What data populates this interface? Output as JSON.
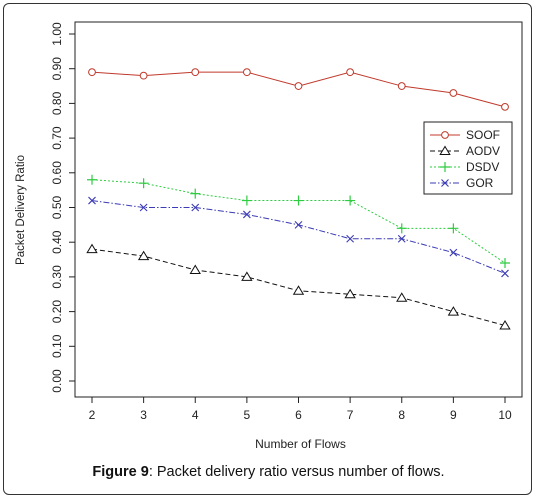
{
  "caption": {
    "label": "Figure 9",
    "text": ": Packet delivery ratio versus number of flows."
  },
  "chart_data": {
    "type": "line",
    "title": "",
    "xlabel": "Number of Flows",
    "ylabel": "Packet Delivery Ratio",
    "x": [
      2,
      3,
      4,
      5,
      6,
      7,
      8,
      9,
      10
    ],
    "x_ticks": [
      "2",
      "3",
      "4",
      "5",
      "6",
      "7",
      "8",
      "9",
      "10"
    ],
    "ylim": [
      0,
      1
    ],
    "y_ticks": [
      "0.00",
      "0.10",
      "0.20",
      "0.30",
      "0.40",
      "0.50",
      "0.60",
      "0.70",
      "0.80",
      "0.90",
      "1.00"
    ],
    "grid": false,
    "legend_position": "right",
    "series": [
      {
        "name": "SOOF",
        "marker": "circle",
        "dash": "solid",
        "color": "#c0392b",
        "values": [
          0.89,
          0.88,
          0.89,
          0.89,
          0.85,
          0.89,
          0.85,
          0.83,
          0.79
        ]
      },
      {
        "name": "AODV",
        "marker": "triangle",
        "dash": "dashed",
        "color": "#111111",
        "values": [
          0.38,
          0.36,
          0.32,
          0.3,
          0.26,
          0.25,
          0.24,
          0.2,
          0.16
        ]
      },
      {
        "name": "DSDV",
        "marker": "plus",
        "dash": "dotted",
        "color": "#2ecc40",
        "values": [
          0.58,
          0.57,
          0.54,
          0.52,
          0.52,
          0.52,
          0.44,
          0.44,
          0.34
        ]
      },
      {
        "name": "GOR",
        "marker": "cross",
        "dash": "dashdot",
        "color": "#3b3bb5",
        "values": [
          0.52,
          0.5,
          0.5,
          0.48,
          0.45,
          0.41,
          0.41,
          0.37,
          0.31
        ]
      }
    ]
  }
}
